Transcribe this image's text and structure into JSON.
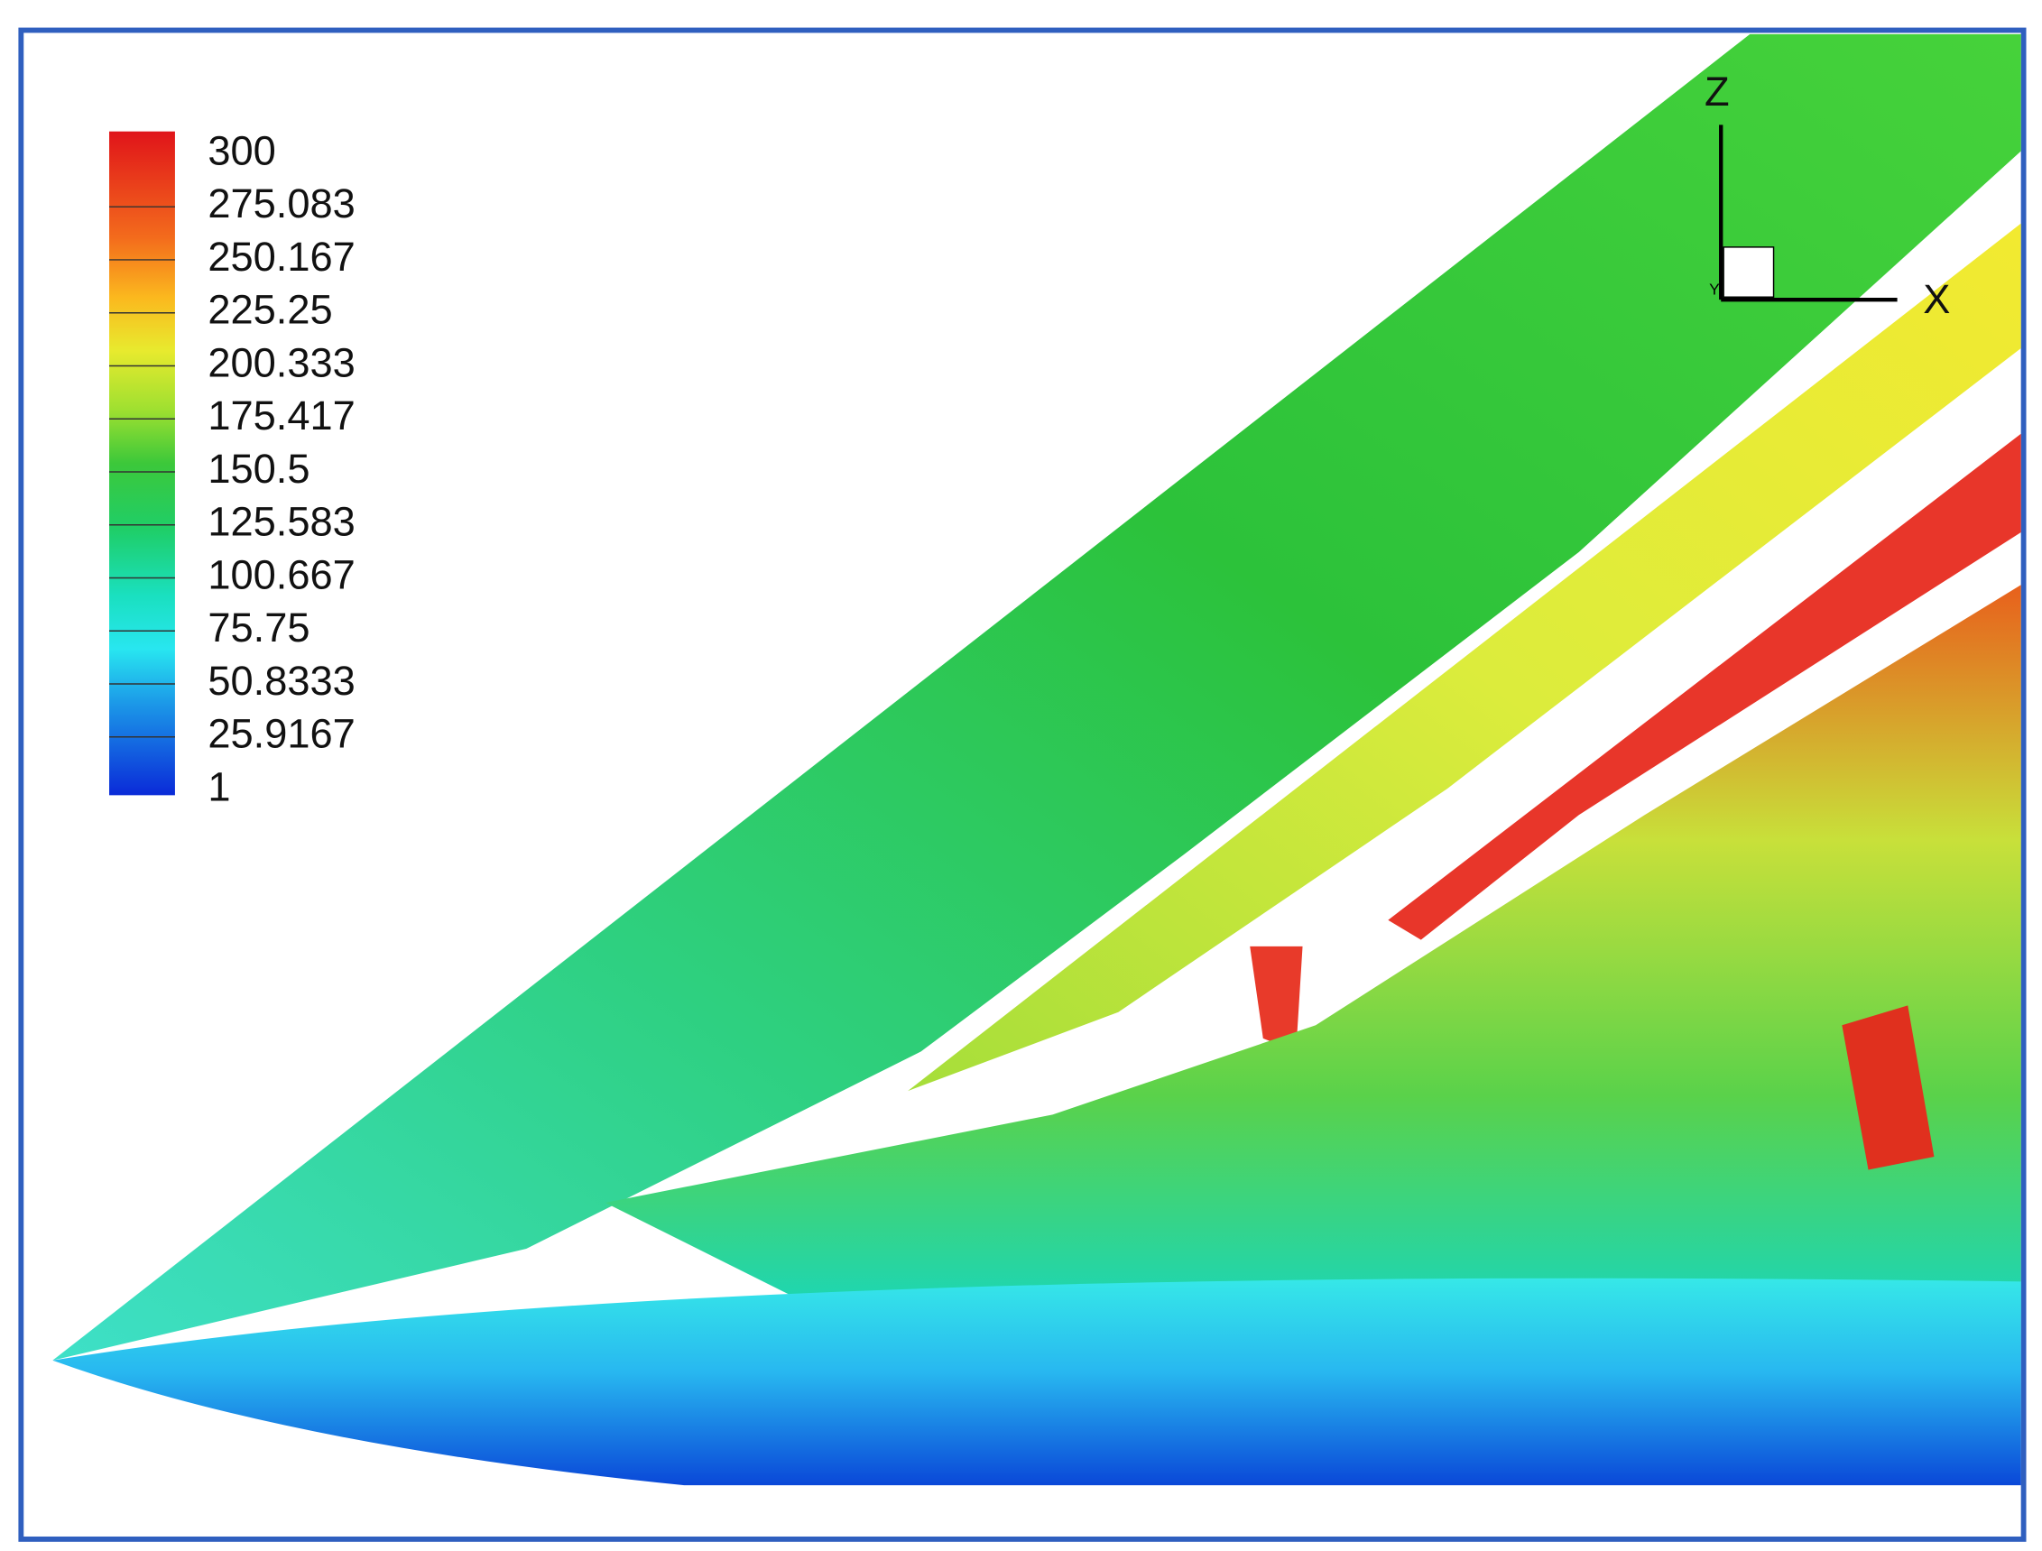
{
  "legend": {
    "labels": [
      "300",
      "275.083",
      "250.167",
      "225.25",
      "200.333",
      "175.417",
      "150.5",
      "125.583",
      "100.667",
      "75.75",
      "50.8333",
      "25.9167",
      "1"
    ]
  },
  "axes": {
    "z": "Z",
    "x": "X",
    "y": "Y"
  }
}
